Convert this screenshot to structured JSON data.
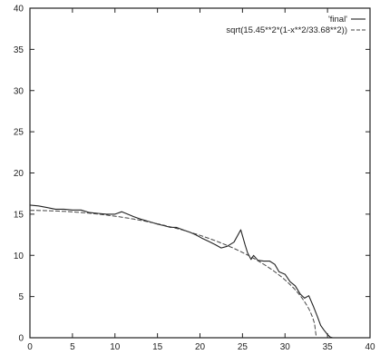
{
  "chart_data": {
    "type": "line",
    "title": "",
    "xlabel": "",
    "ylabel": "",
    "xlim": [
      0,
      40
    ],
    "ylim": [
      0,
      40
    ],
    "grid": false,
    "legend_position": "top-right",
    "x_ticks": [
      "0",
      "5",
      "10",
      "15",
      "20",
      "25",
      "30",
      "35",
      "40"
    ],
    "y_ticks": [
      "0",
      "5",
      "10",
      "15",
      "20",
      "25",
      "30",
      "35",
      "40"
    ],
    "series": [
      {
        "name": "'final'",
        "style": "solid",
        "color": "#222222",
        "x": [
          0,
          1,
          2,
          3,
          4,
          5,
          6,
          7,
          8,
          9,
          10,
          10.8,
          11.5,
          12.2,
          13,
          14,
          15,
          15.8,
          16.5,
          17.2,
          18,
          18.8,
          19.5,
          20.2,
          21,
          21.8,
          22.5,
          23.2,
          24,
          24.8,
          25.3,
          25.6,
          26,
          26.3,
          26.8,
          27.5,
          28.2,
          28.8,
          29.3,
          30,
          30.6,
          31.2,
          31.8,
          32.3,
          32.8,
          33.3,
          33.8,
          34.2,
          34.6,
          35.0,
          35.3,
          35.6
        ],
        "y": [
          16.1,
          16.0,
          15.8,
          15.6,
          15.6,
          15.5,
          15.5,
          15.2,
          15.1,
          15.0,
          15.0,
          15.3,
          15.0,
          14.7,
          14.4,
          14.1,
          13.8,
          13.6,
          13.4,
          13.4,
          13.1,
          12.8,
          12.5,
          12.1,
          11.7,
          11.3,
          10.9,
          11.1,
          11.6,
          13.1,
          11.3,
          10.3,
          9.5,
          10.0,
          9.4,
          9.3,
          9.3,
          8.9,
          8.0,
          7.7,
          6.8,
          6.3,
          5.3,
          4.8,
          5.1,
          3.9,
          2.6,
          1.5,
          0.9,
          0.4,
          0.1,
          0.0
        ]
      },
      {
        "name": "sqrt(15.45**2*(1-x**2/33.68**2))",
        "style": "dashed",
        "color": "#444444",
        "function": "sqrt(15.45**2*(1-x**2/33.68**2))",
        "a": 33.68,
        "b": 15.45
      }
    ]
  }
}
